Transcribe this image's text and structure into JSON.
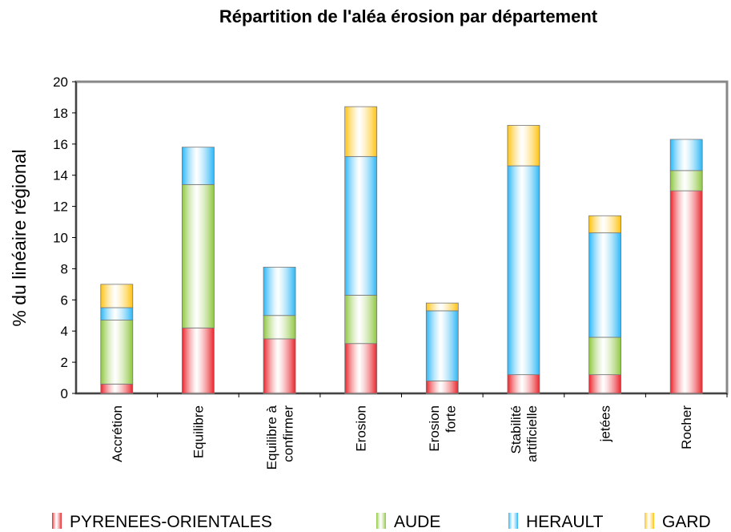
{
  "chart_data": {
    "type": "stacked_bar",
    "title": "Répartition de l'aléa érosion par département",
    "y_label": "% du linéaire régional",
    "categories": [
      "Accrétion",
      "Equilibre",
      "Equilibre à\nconfirmer",
      "Erosion",
      "Erosion\nforte",
      "Stabilité\nartificielle",
      "jetées",
      "Rocher"
    ],
    "series": [
      {
        "name": "PYRENEES-ORIENTALES",
        "color": "#e8232a",
        "values": [
          0.6,
          4.2,
          3.5,
          3.2,
          0.8,
          1.2,
          1.2,
          13.0
        ]
      },
      {
        "name": "AUDE",
        "color": "#8dc63f",
        "values": [
          4.1,
          9.2,
          1.5,
          3.1,
          0,
          0,
          2.4,
          1.3
        ]
      },
      {
        "name": "HERAULT",
        "color": "#29b6f6",
        "values": [
          0.8,
          2.4,
          3.1,
          8.9,
          4.5,
          13.4,
          6.7,
          2.0
        ]
      },
      {
        "name": "GARD",
        "color": "#ffc20e",
        "values": [
          1.5,
          0,
          0,
          3.2,
          0.5,
          2.6,
          1.1,
          0
        ]
      }
    ],
    "ylim": [
      0,
      20
    ],
    "yticks": [
      0,
      2,
      4,
      6,
      8,
      10,
      12,
      14,
      16,
      18,
      20
    ],
    "grid": false
  }
}
